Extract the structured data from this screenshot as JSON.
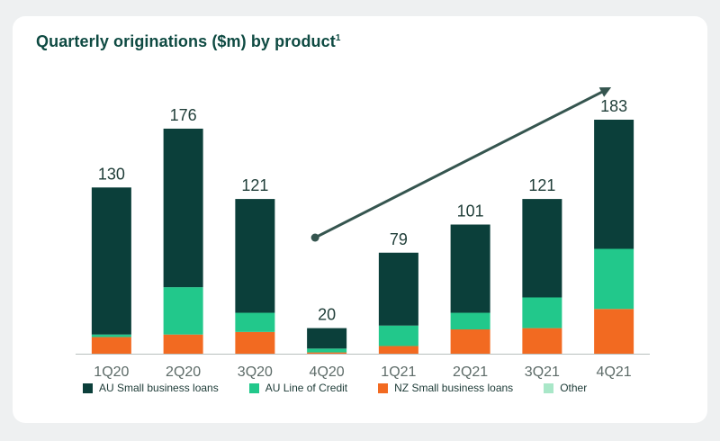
{
  "header": {
    "title": "Quarterly originations ($m) by product",
    "superscript": "1"
  },
  "colors": {
    "au_small_business_loans": "#0b3f3a",
    "au_line_of_credit": "#22c88b",
    "nz_small_business_loans": "#f26a21",
    "other": "#a9e7c8",
    "axis": "#b8c0be",
    "label": "#1f3d38",
    "trend": "#35554f"
  },
  "chart_data": {
    "type": "bar",
    "stacked": true,
    "title": "Quarterly originations ($m) by product",
    "categories": [
      "1Q20",
      "2Q20",
      "3Q20",
      "4Q20",
      "1Q21",
      "2Q21",
      "3Q21",
      "4Q21"
    ],
    "totals": [
      "130",
      "176",
      "121",
      "20",
      "79",
      "101",
      "121",
      "183"
    ],
    "series": [
      {
        "key": "nz_small_business_loans",
        "name": "NZ Small business loans",
        "values": [
          13,
          15,
          17,
          1,
          6,
          19,
          20,
          35
        ]
      },
      {
        "key": "au_line_of_credit",
        "name": "AU Line of Credit",
        "values": [
          2,
          37,
          15,
          3,
          16,
          13,
          24,
          47
        ]
      },
      {
        "key": "au_small_business_loans",
        "name": "AU Small business loans",
        "values": [
          115,
          124,
          89,
          16,
          57,
          69,
          77,
          101
        ]
      },
      {
        "key": "other",
        "name": "Other",
        "values": [
          0,
          0,
          0,
          0,
          0,
          0,
          0,
          0
        ]
      }
    ],
    "legend": [
      "AU Small business loans",
      "AU Line of Credit",
      "NZ Small business loans",
      "Other"
    ],
    "trend_arrow": {
      "from_category": "4Q20",
      "to_category": "4Q21",
      "direction": "up"
    },
    "ylim": [
      0,
      183
    ],
    "xlabel": "",
    "ylabel": ""
  }
}
